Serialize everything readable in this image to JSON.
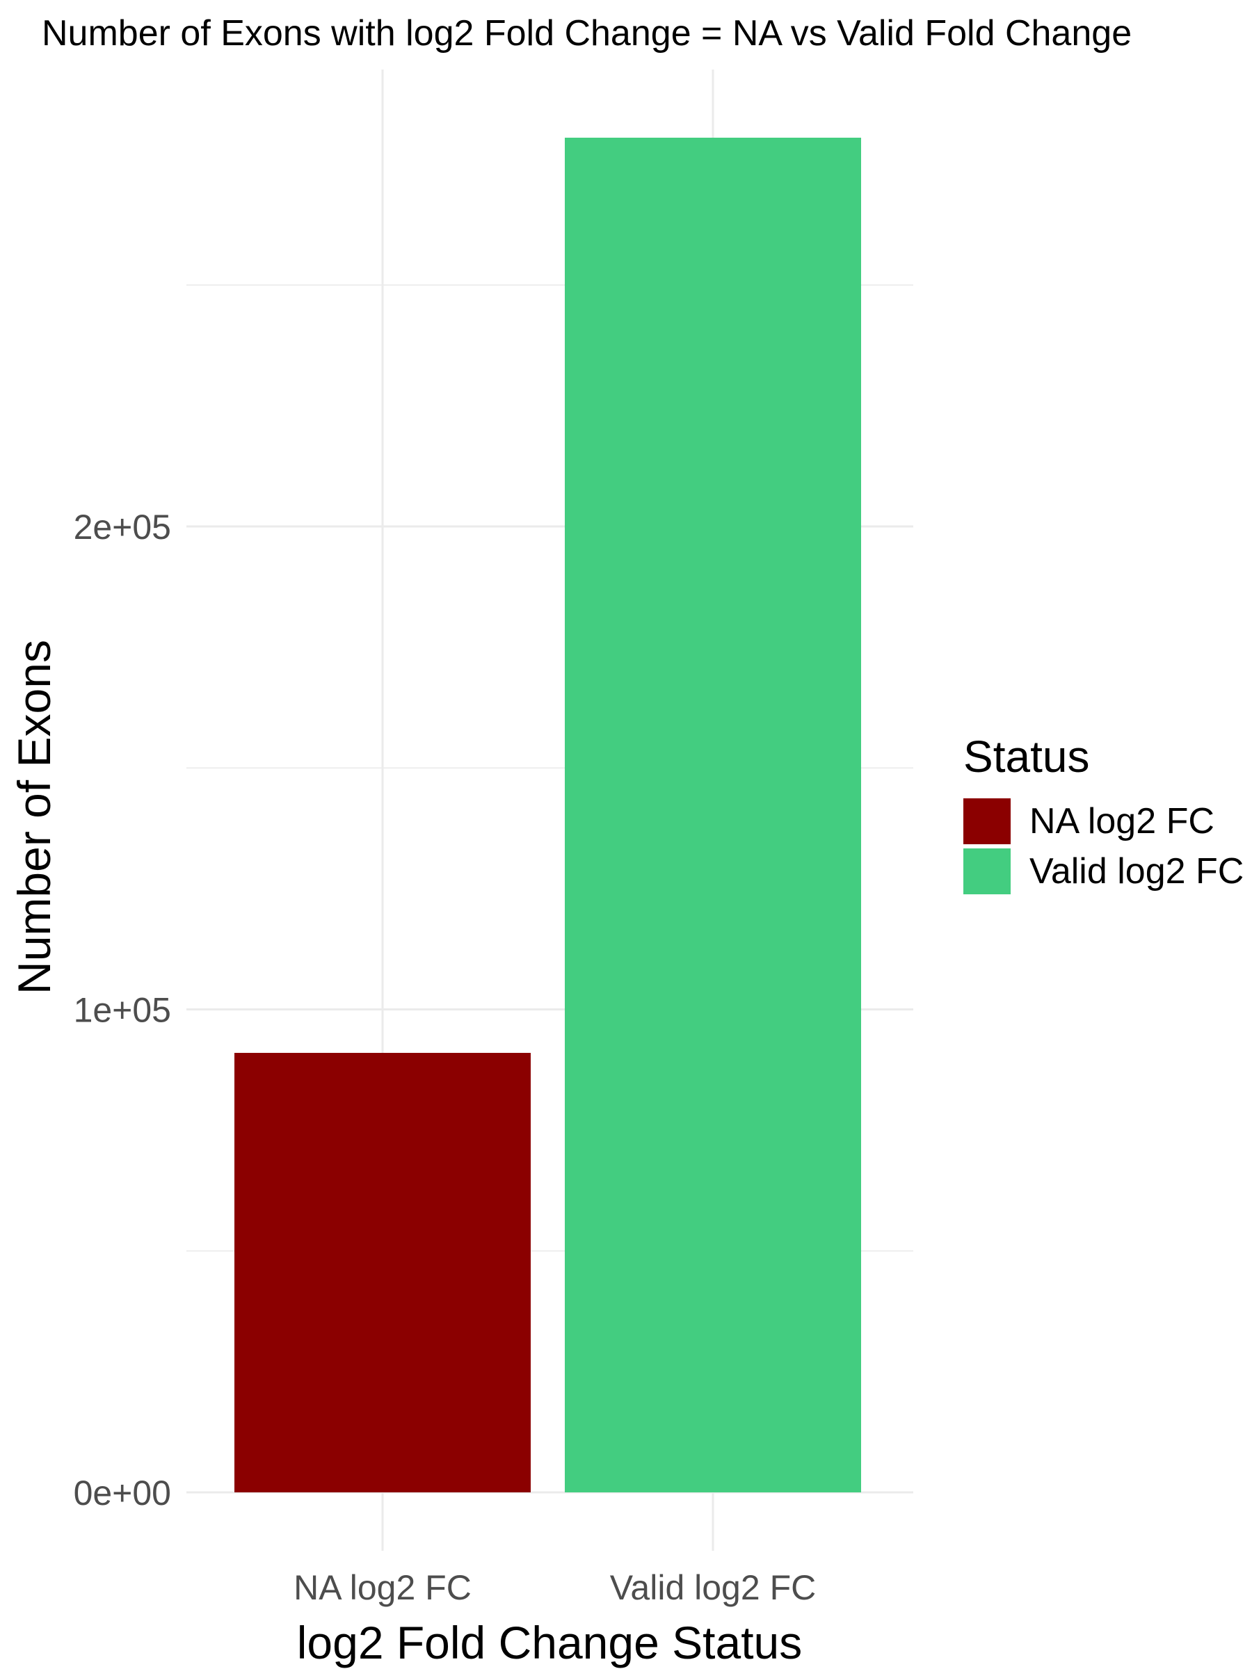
{
  "chart_data": {
    "type": "bar",
    "title": "Number of Exons with log2 Fold Change = NA vs Valid Fold Change",
    "xlabel": "log2 Fold Change Status",
    "ylabel": "Number of Exons",
    "categories": [
      "NA log2 FC",
      "Valid log2 FC"
    ],
    "values": [
      91000,
      280500
    ],
    "colors": [
      "#8B0000",
      "#43CD80"
    ],
    "ylim": [
      0,
      280500
    ],
    "yticks": [
      0,
      100000,
      200000
    ],
    "ytick_labels": [
      "0e+00",
      "1e+05",
      "2e+05"
    ],
    "grid": true,
    "legend": {
      "title": "Status",
      "position": "right",
      "entries": [
        "NA log2 FC",
        "Valid log2 FC"
      ]
    }
  }
}
